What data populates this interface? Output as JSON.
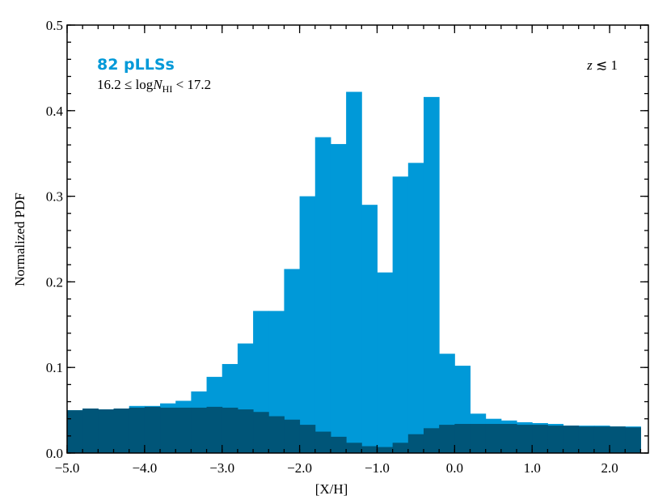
{
  "chart_data": {
    "type": "histogram",
    "xlabel": "[X/H]",
    "ylabel": "Normalized PDF",
    "annotations": [
      {
        "parts": [
          "82 pLLSs"
        ],
        "color": "#0099d8"
      },
      {
        "parts": [
          "16.2 ≤ log",
          "N",
          "HI",
          " < 17.2"
        ]
      },
      {
        "parts": [
          "z",
          " ≲ 1"
        ]
      }
    ],
    "bins": [
      -5.0,
      -4.8,
      -4.6,
      -4.4,
      -4.2,
      -4.0,
      -3.8,
      -3.6,
      -3.4,
      -3.2,
      -3.0,
      -2.8,
      -2.6,
      -2.4,
      -2.2,
      -2.0,
      -1.8,
      -1.6,
      -1.4,
      -1.2,
      -1.0,
      -0.8,
      -0.6,
      -0.4,
      -0.2,
      0.0,
      0.2,
      0.4,
      0.6,
      0.8,
      1.0,
      1.2,
      1.4,
      1.6,
      1.8,
      2.0,
      2.2,
      2.4
    ],
    "series": [
      {
        "color": "#0099d8",
        "values": [
          0.05,
          0.052,
          0.051,
          0.052,
          0.055,
          0.055,
          0.058,
          0.061,
          0.072,
          0.089,
          0.104,
          0.128,
          0.166,
          0.166,
          0.215,
          0.3,
          0.369,
          0.361,
          0.422,
          0.29,
          0.211,
          0.323,
          0.339,
          0.416,
          0.116,
          0.102,
          0.046,
          0.04,
          0.038,
          0.036,
          0.035,
          0.034,
          0.032,
          0.032,
          0.032,
          0.031,
          0.031
        ]
      },
      {
        "color": "#005578",
        "values": [
          0.05,
          0.052,
          0.051,
          0.052,
          0.053,
          0.054,
          0.053,
          0.053,
          0.053,
          0.054,
          0.053,
          0.051,
          0.048,
          0.043,
          0.039,
          0.033,
          0.025,
          0.019,
          0.012,
          0.008,
          0.007,
          0.012,
          0.022,
          0.029,
          0.033,
          0.034,
          0.034,
          0.034,
          0.034,
          0.033,
          0.033,
          0.032,
          0.032,
          0.031,
          0.031,
          0.031,
          0.03
        ]
      }
    ],
    "xlim": [
      -5.0,
      2.5
    ],
    "ylim": [
      0,
      0.5
    ],
    "xticks": [
      {
        "value": -5,
        "label": "−5.0"
      },
      {
        "value": -4,
        "label": "−4.0"
      },
      {
        "value": -3,
        "label": "−3.0"
      },
      {
        "value": -2,
        "label": "−2.0"
      },
      {
        "value": -1,
        "label": "−1.0"
      },
      {
        "value": 0,
        "label": "0.0"
      },
      {
        "value": 1,
        "label": "1.0"
      },
      {
        "value": 2,
        "label": "2.0"
      }
    ],
    "yticks": [
      {
        "value": 0,
        "label": "0.0"
      },
      0.1,
      0.2,
      0.3,
      0.4,
      0.5
    ]
  }
}
